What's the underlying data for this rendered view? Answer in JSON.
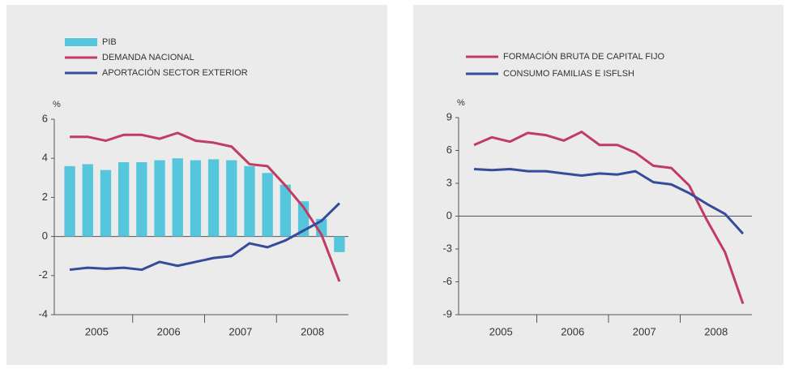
{
  "chart_data": [
    {
      "type": "combo",
      "y_label": "%",
      "categories": [
        "2005",
        null,
        null,
        null,
        "2006",
        null,
        null,
        null,
        "2007",
        null,
        null,
        null,
        "2008",
        null,
        null,
        null
      ],
      "ylim": [
        -4,
        6
      ],
      "yticks": [
        -4,
        -2,
        0,
        2,
        4,
        6
      ],
      "zero_line": true,
      "series": [
        {
          "name": "PIB",
          "kind": "bar",
          "color": "#55c6db",
          "values": [
            3.6,
            3.7,
            3.4,
            3.8,
            3.8,
            3.9,
            4.0,
            3.9,
            3.95,
            3.9,
            3.6,
            3.25,
            2.65,
            1.8,
            0.9,
            -0.8
          ]
        },
        {
          "name": "DEMANDA NACIONAL",
          "kind": "line",
          "color": "#c23b62",
          "values": [
            5.1,
            5.1,
            4.9,
            5.2,
            5.2,
            5.0,
            5.3,
            4.9,
            4.8,
            4.6,
            3.7,
            3.6,
            2.6,
            1.5,
            0.1,
            -2.3
          ]
        },
        {
          "name": "APORTACIÓN SECTOR EXTERIOR",
          "kind": "line",
          "color": "#354b9b",
          "values": [
            -1.7,
            -1.6,
            -1.65,
            -1.6,
            -1.7,
            -1.3,
            -1.5,
            -1.3,
            -1.1,
            -1.0,
            -0.35,
            -0.55,
            -0.2,
            0.3,
            0.8,
            1.7
          ]
        }
      ]
    },
    {
      "type": "line",
      "y_label": "%",
      "categories": [
        "2005",
        null,
        null,
        null,
        "2006",
        null,
        null,
        null,
        "2007",
        null,
        null,
        null,
        "2008",
        null,
        null,
        null
      ],
      "ylim": [
        -9,
        9
      ],
      "yticks": [
        -9,
        -6,
        -3,
        0,
        3,
        6,
        9
      ],
      "zero_line": true,
      "series": [
        {
          "name": "FORMACIÓN BRUTA DE CAPITAL FIJO",
          "kind": "line",
          "color": "#c23b62",
          "values": [
            6.5,
            7.2,
            6.8,
            7.6,
            7.4,
            6.9,
            7.7,
            6.5,
            6.5,
            5.8,
            4.6,
            4.4,
            2.8,
            -0.4,
            -3.3,
            -8.0
          ]
        },
        {
          "name": "CONSUMO FAMILIAS E ISFLSH",
          "kind": "line",
          "color": "#354b9b",
          "values": [
            4.3,
            4.2,
            4.3,
            4.1,
            4.1,
            3.9,
            3.7,
            3.9,
            3.8,
            4.1,
            3.1,
            2.9,
            2.1,
            1.1,
            0.2,
            -1.6
          ]
        }
      ]
    }
  ]
}
